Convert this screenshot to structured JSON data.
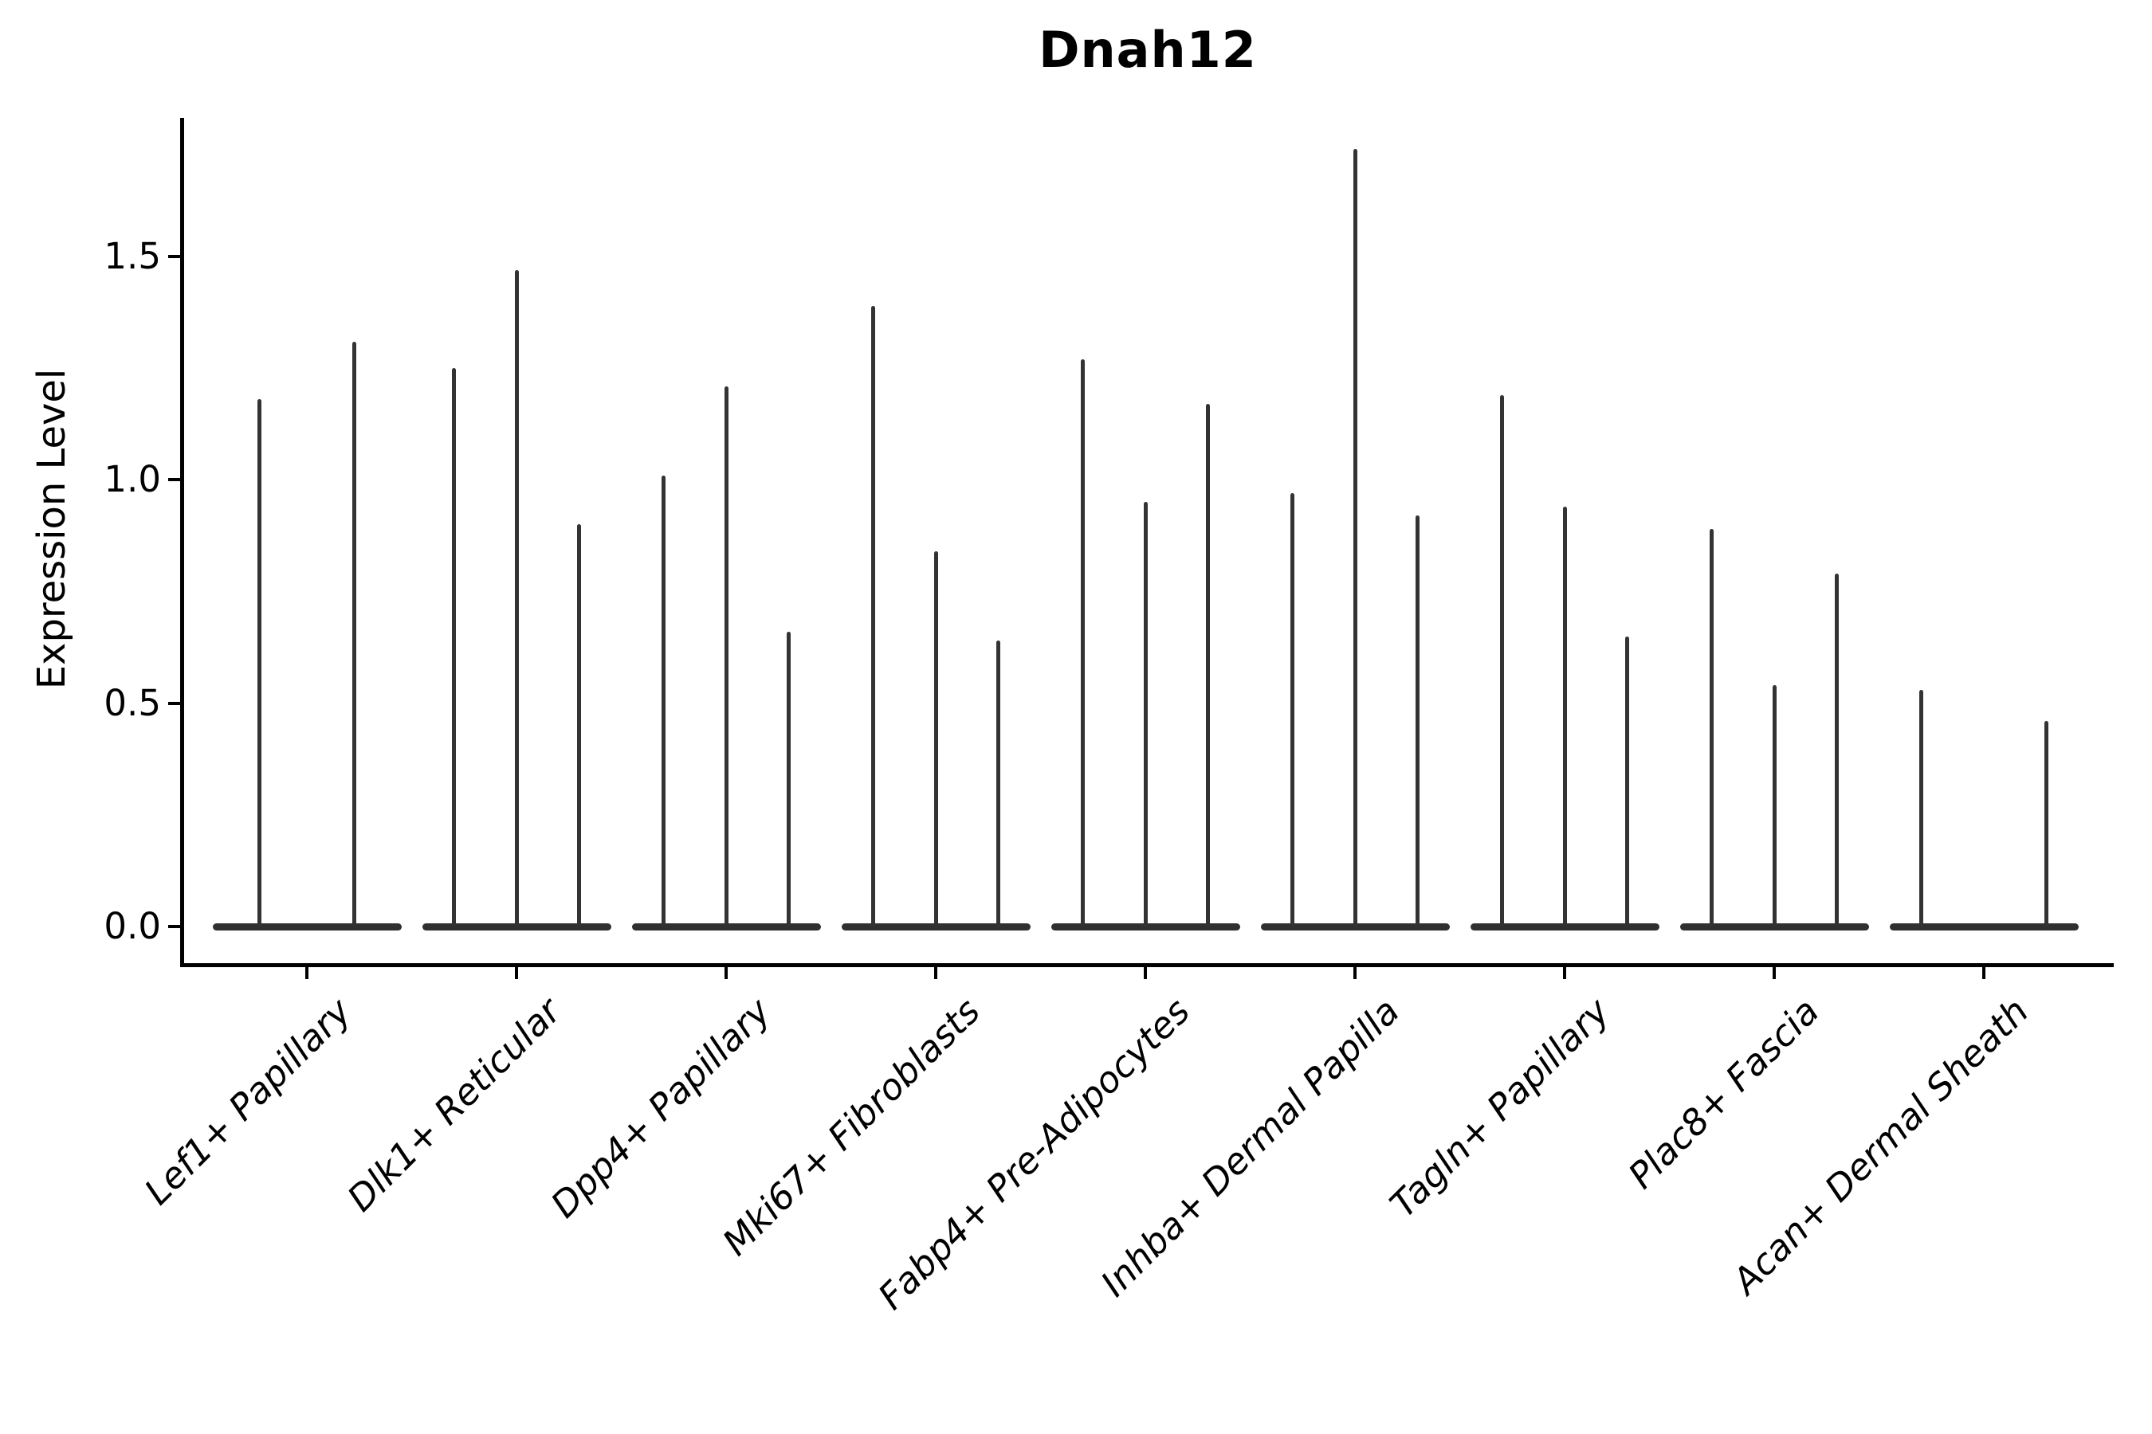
{
  "title": "Dnah12",
  "y_axis": {
    "label": "Expression Level",
    "tick_labels": [
      "0.0",
      "0.5",
      "1.0",
      "1.5"
    ]
  },
  "colors": {
    "ink": "#000000",
    "violin": "#303030",
    "background": "#ffffff"
  },
  "chart_data": {
    "type": "violin",
    "title": "Dnah12",
    "ylabel": "Expression Level",
    "ylim": [
      0,
      1.81
    ],
    "yticks": [
      0.0,
      0.5,
      1.0,
      1.5
    ],
    "grid": false,
    "legend": "none",
    "description": "Stacked-violin style expression plot: each cell-type group shows 2-3 very thin violins collapsed to a flat base at 0 with a narrow spike up to the maximum expression value.",
    "categories": [
      "Lef1+ Papillary",
      "Dlk1+ Reticular",
      "Dpp4+ Papillary",
      "Mki67+ Fibroblasts",
      "Fabp4+ Pre-Adipocytes",
      "Inhba+ Dermal Papilla",
      "Tagln+ Papillary",
      "Plac8+ Fascia",
      "Acan+ Dermal Sheath"
    ],
    "series": [
      {
        "category": "Lef1+ Papillary",
        "violins": [
          {
            "pos": -0.225,
            "max": 1.18
          },
          {
            "pos": 0.225,
            "max": 1.31
          }
        ]
      },
      {
        "category": "Dlk1+ Reticular",
        "violins": [
          {
            "pos": -0.3,
            "max": 1.25
          },
          {
            "pos": 0.0,
            "max": 1.47
          },
          {
            "pos": 0.3,
            "max": 0.9
          }
        ]
      },
      {
        "category": "Dpp4+ Papillary",
        "violins": [
          {
            "pos": -0.3,
            "max": 1.01
          },
          {
            "pos": 0.0,
            "max": 1.21
          },
          {
            "pos": 0.3,
            "max": 0.66
          }
        ]
      },
      {
        "category": "Mki67+ Fibroblasts",
        "violins": [
          {
            "pos": -0.3,
            "max": 1.39
          },
          {
            "pos": 0.0,
            "max": 0.84
          },
          {
            "pos": 0.3,
            "max": 0.64
          }
        ]
      },
      {
        "category": "Fabp4+ Pre-Adipocytes",
        "violins": [
          {
            "pos": -0.3,
            "max": 1.27
          },
          {
            "pos": 0.0,
            "max": 0.95
          },
          {
            "pos": 0.3,
            "max": 1.17
          }
        ]
      },
      {
        "category": "Inhba+ Dermal Papilla",
        "violins": [
          {
            "pos": -0.3,
            "max": 0.97
          },
          {
            "pos": 0.0,
            "max": 1.74
          },
          {
            "pos": 0.3,
            "max": 0.92
          }
        ]
      },
      {
        "category": "Tagln+ Papillary",
        "violins": [
          {
            "pos": -0.3,
            "max": 1.19
          },
          {
            "pos": 0.0,
            "max": 0.94
          },
          {
            "pos": 0.3,
            "max": 0.65
          }
        ]
      },
      {
        "category": "Plac8+ Fascia",
        "violins": [
          {
            "pos": -0.3,
            "max": 0.89
          },
          {
            "pos": 0.0,
            "max": 0.54
          },
          {
            "pos": 0.3,
            "max": 0.79
          }
        ]
      },
      {
        "category": "Acan+ Dermal Sheath",
        "violins": [
          {
            "pos": -0.3,
            "max": 0.53
          },
          {
            "pos": 0.0,
            "max": 0.0
          },
          {
            "pos": 0.3,
            "max": 0.46
          }
        ]
      }
    ]
  }
}
